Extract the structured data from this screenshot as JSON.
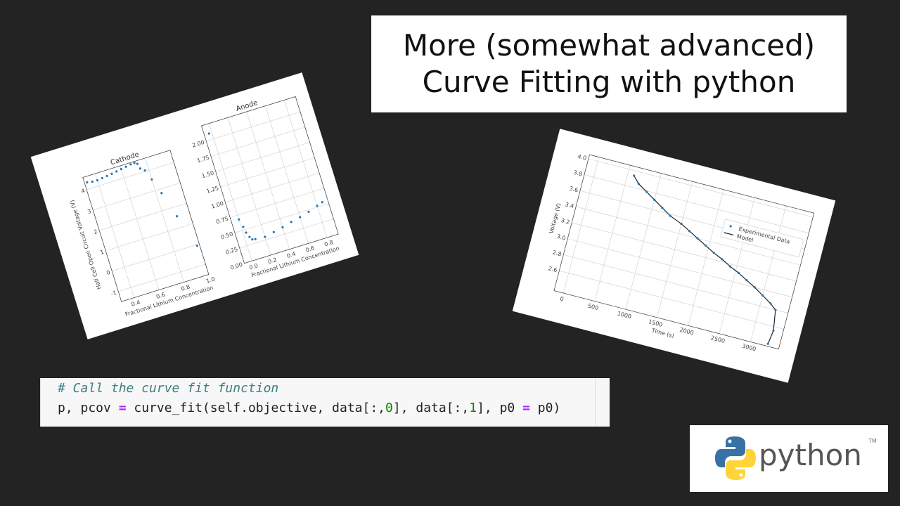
{
  "title": {
    "line1": "More (somewhat advanced)",
    "line2": "Curve Fitting with python"
  },
  "code": {
    "comment": "#  Call the curve fit function",
    "line_parts": [
      "p, pcov ",
      "=",
      " curve_fit(self.objective, data[:,",
      "0",
      "], data[:,",
      "1",
      "], p0 ",
      "=",
      " p0)"
    ]
  },
  "logo": {
    "word": "python",
    "tm": "TM",
    "colors": {
      "blue": "#3872a4",
      "yellow": "#ffd43b"
    }
  },
  "chart_data": [
    {
      "type": "scatter",
      "title": "Cathode",
      "xlabel": "Fractional Lithium Concentration",
      "ylabel": "Half Cell Open Circuit Voltage (V)",
      "xlim": [
        0.3,
        1.0
      ],
      "ylim": [
        -1.5,
        4.6
      ],
      "xticks": [
        "0.4",
        "0.6",
        "0.8",
        "1.0"
      ],
      "xtickvals": [
        0.4,
        0.6,
        0.8,
        1.0
      ],
      "yticks": [
        "-1",
        "0",
        "1",
        "2",
        "3",
        "4"
      ],
      "ytickvals": [
        -1,
        0,
        1,
        2,
        3,
        4
      ],
      "grid": true,
      "color": "#1f77b4",
      "x": [
        0.32,
        0.36,
        0.4,
        0.44,
        0.48,
        0.52,
        0.56,
        0.6,
        0.64,
        0.68,
        0.71,
        0.73,
        0.74,
        0.77,
        0.8,
        0.84,
        0.9,
        0.98
      ],
      "y": [
        4.32,
        4.28,
        4.27,
        4.3,
        4.33,
        4.36,
        4.4,
        4.44,
        4.48,
        4.52,
        4.53,
        4.45,
        4.2,
        4.05,
        3.55,
        2.8,
        1.55,
        -0.05
      ]
    },
    {
      "type": "scatter",
      "title": "Anode",
      "xlabel": "Fractional Lithium Concentration",
      "ylabel": "",
      "xlim": [
        -0.08,
        0.92
      ],
      "ylim": [
        0,
        2.25
      ],
      "xticks": [
        "0.0",
        "0.2",
        "0.4",
        "0.6",
        "0.8"
      ],
      "xtickvals": [
        0,
        0.2,
        0.4,
        0.6,
        0.8
      ],
      "yticks": [
        "0.00",
        "0.25",
        "0.50",
        "0.75",
        "1.00",
        "1.25",
        "1.50",
        "1.75",
        "2.00"
      ],
      "ytickvals": [
        0,
        0.25,
        0.5,
        0.75,
        1,
        1.25,
        1.5,
        1.75,
        2
      ],
      "grid": true,
      "color": "#1f77b4",
      "x": [
        -0.03,
        0.0,
        0.02,
        0.03,
        0.05,
        0.07,
        0.1,
        0.2,
        0.3,
        0.4,
        0.5,
        0.6,
        0.7,
        0.8,
        0.86
      ],
      "y": [
        2.1,
        0.68,
        0.55,
        0.45,
        0.37,
        0.32,
        0.31,
        0.3,
        0.33,
        0.36,
        0.4,
        0.43,
        0.47,
        0.52,
        0.55
      ]
    },
    {
      "type": "line",
      "xlabel": "Time (s)",
      "ylabel": "Voltage (V)",
      "xlim": [
        -150,
        3450
      ],
      "ylim": [
        2.35,
        4.05
      ],
      "xticks": [
        "0",
        "500",
        "1000",
        "1500",
        "2000",
        "2500",
        "3000"
      ],
      "xtickvals": [
        0,
        500,
        1000,
        1500,
        2000,
        2500,
        3000
      ],
      "yticks": [
        "2.6",
        "2.8",
        "3.0",
        "3.2",
        "3.4",
        "3.6",
        "3.8",
        "4.0"
      ],
      "ytickvals": [
        2.6,
        2.8,
        3.0,
        3.2,
        3.4,
        3.6,
        3.8,
        4.0
      ],
      "grid": true,
      "legend": "upper right",
      "series": [
        {
          "name": "Experimental Data",
          "style": "points",
          "color": "#1f77b4"
        },
        {
          "name": "Model",
          "style": "line",
          "color": "#222222"
        }
      ],
      "x": [
        600,
        700,
        850,
        1000,
        1150,
        1300,
        1500,
        1650,
        1800,
        1950,
        2100,
        2250,
        2400,
        2550,
        2700,
        2850,
        3000,
        3150,
        3250,
        3300,
        3270
      ],
      "y": [
        3.94,
        3.86,
        3.79,
        3.72,
        3.65,
        3.58,
        3.52,
        3.46,
        3.4,
        3.34,
        3.28,
        3.23,
        3.17,
        3.12,
        3.06,
        3.0,
        2.93,
        2.86,
        2.8,
        2.55,
        2.38
      ]
    }
  ]
}
